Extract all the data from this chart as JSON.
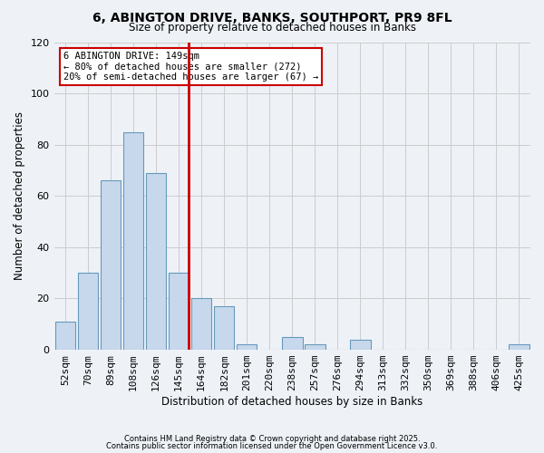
{
  "title": "6, ABINGTON DRIVE, BANKS, SOUTHPORT, PR9 8FL",
  "subtitle": "Size of property relative to detached houses in Banks",
  "xlabel": "Distribution of detached houses by size in Banks",
  "ylabel": "Number of detached properties",
  "bar_labels": [
    "52sqm",
    "70sqm",
    "89sqm",
    "108sqm",
    "126sqm",
    "145sqm",
    "164sqm",
    "182sqm",
    "201sqm",
    "220sqm",
    "238sqm",
    "257sqm",
    "276sqm",
    "294sqm",
    "313sqm",
    "332sqm",
    "350sqm",
    "369sqm",
    "388sqm",
    "406sqm",
    "425sqm"
  ],
  "bar_values": [
    11,
    30,
    66,
    85,
    69,
    30,
    20,
    17,
    2,
    0,
    5,
    2,
    0,
    4,
    0,
    0,
    0,
    0,
    0,
    0,
    2
  ],
  "bar_color": "#c8d8ec",
  "bar_edge_color": "#6699bb",
  "vline_index": 5,
  "vline_color": "#cc0000",
  "ylim": [
    0,
    120
  ],
  "yticks": [
    0,
    20,
    40,
    60,
    80,
    100,
    120
  ],
  "annotation_title": "6 ABINGTON DRIVE: 149sqm",
  "annotation_line1": "← 80% of detached houses are smaller (272)",
  "annotation_line2": "20% of semi-detached houses are larger (67) →",
  "annotation_box_color": "#ffffff",
  "annotation_box_edge": "#cc0000",
  "grid_color": "#cccccc",
  "bg_color": "#eef2f7",
  "footnote1": "Contains HM Land Registry data © Crown copyright and database right 2025.",
  "footnote2": "Contains public sector information licensed under the Open Government Licence v3.0."
}
